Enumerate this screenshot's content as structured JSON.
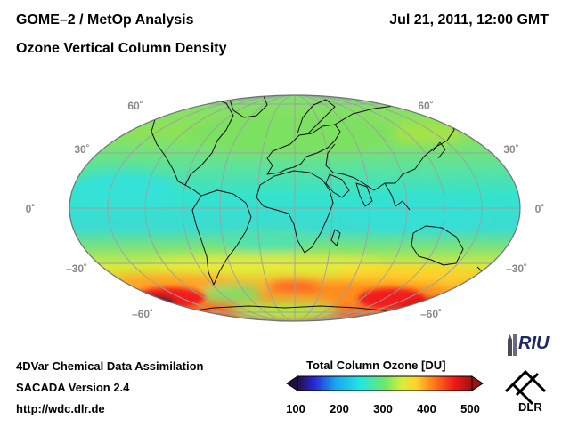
{
  "header": {
    "title_line1": "GOME–2 / MetOp Analysis",
    "title_line2": "Ozone Vertical Column Density",
    "datetime": "Jul 21, 2011, 12:00 GMT"
  },
  "map": {
    "projection": "Hammer-Aitoff (global)",
    "lat_labels_left": [
      "60˚",
      "30˚",
      "0˚",
      "–30˚",
      "–60˚"
    ],
    "lat_labels_right": [
      "60˚",
      "30˚",
      "0˚",
      "–30˚",
      "–60˚"
    ],
    "colors": {
      "background_field": "#33e3cf",
      "equator_band": "#3ddbd0",
      "midlat_green": "#8fe255",
      "yellow": "#ffe23a",
      "orange": "#ff8a1e",
      "red": "#f21c1c",
      "dark_minimum": "#3a1e2a",
      "graticule": "#9aa0a0",
      "coastline": "#101010"
    }
  },
  "colorbar": {
    "title": "Total Column Ozone [DU]",
    "min": 100,
    "max": 500,
    "ticks": [
      "100",
      "200",
      "300",
      "400",
      "500"
    ],
    "stops": [
      "#201040",
      "#2a2ad8",
      "#1aa6f0",
      "#22e6e0",
      "#6ee86a",
      "#d8ee3a",
      "#ffd22a",
      "#ff7a1a",
      "#f01818",
      "#a01010"
    ]
  },
  "footer": {
    "line1": "4DVar Chemical Data Assimilation",
    "line2": "SACADA Version 2.4",
    "url": "http://wdc.dlr.de"
  },
  "logos": {
    "riu": "RIU",
    "dlr": "DLR"
  }
}
